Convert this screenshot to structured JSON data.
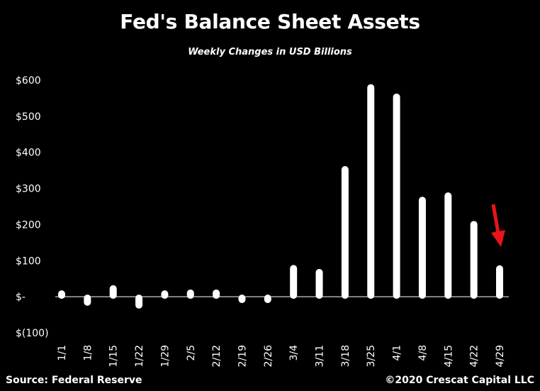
{
  "chart_data": {
    "type": "bar",
    "title": "Fed's Balance Sheet Assets",
    "subtitle": "Weekly Changes in USD Billions",
    "categories": [
      "1/1",
      "1/8",
      "1/15",
      "1/22",
      "1/29",
      "2/5",
      "2/12",
      "2/19",
      "2/26",
      "3/4",
      "3/11",
      "3/18",
      "3/25",
      "4/1",
      "4/8",
      "4/15",
      "4/22",
      "4/29"
    ],
    "values": [
      12,
      -25,
      32,
      -33,
      5,
      20,
      20,
      -15,
      -15,
      88,
      77,
      362,
      589,
      563,
      277,
      289,
      210,
      87
    ],
    "ylim": [
      -100,
      600
    ],
    "yticks": [
      600,
      500,
      400,
      300,
      200,
      100,
      0,
      -100
    ],
    "ytick_labels": [
      "$600",
      "$500",
      "$400",
      "$300",
      "$200",
      "$100",
      "$-",
      "$(100)"
    ],
    "xlabel": "",
    "ylabel": "",
    "grid": false,
    "bar_color": "#ffffff",
    "annotation": {
      "type": "arrow",
      "target_category": "4/29",
      "color": "#e8141b"
    }
  },
  "footer": {
    "source": "Source: Federal Reserve",
    "copyright": "©2020 Crescat Capital LLC"
  }
}
